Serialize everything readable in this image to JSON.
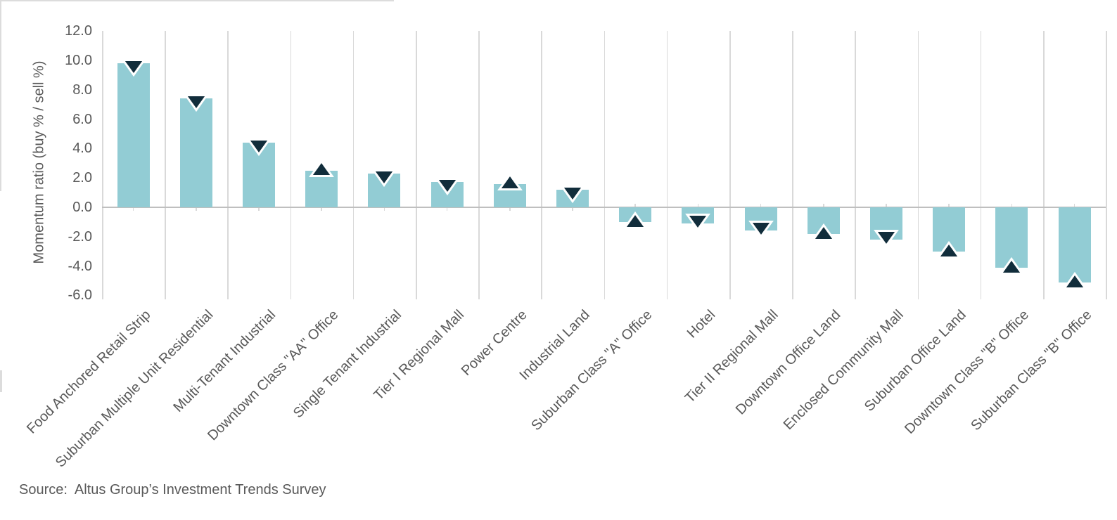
{
  "chart_data": {
    "type": "bar",
    "title": "",
    "xlabel": "",
    "ylabel": "Momentum ratio (buy % / sell %)",
    "ylim": [
      -6.0,
      12.0
    ],
    "ytick_interval": 2.0,
    "ytick_labels": [
      "12.0",
      "10.0",
      "8.0",
      "6.0",
      "4.0",
      "2.0",
      "0.0",
      "-2.0",
      "-4.0",
      "-6.0"
    ],
    "grid": "vertical category separators only",
    "legend": null,
    "categories": [
      "Food Anchored Retail Strip",
      "Suburban Multiple Unit Residential",
      "Multi-Tenant Industrial",
      "Downtown Class \"AA\" Office",
      "Single Tenant Industrial",
      "Tier I Regional Mall",
      "Power Centre",
      "Industrial Land",
      "Suburban Class \"A\" Office",
      "Hotel",
      "Tier II Regional Mall",
      "Downtown Office Land",
      "Enclosed Community Mall",
      "Suburban Office Land",
      "Downtown Class \"B\" Office",
      "Suburban Class \"B\" Office"
    ],
    "values": [
      9.8,
      7.4,
      4.4,
      2.5,
      2.3,
      1.7,
      1.6,
      1.2,
      -1.0,
      -1.1,
      -1.6,
      -1.8,
      -2.2,
      -3.0,
      -4.1,
      -5.1
    ],
    "marker_directions": [
      "down",
      "down",
      "down",
      "up",
      "down",
      "down",
      "up",
      "down",
      "up",
      "down",
      "down",
      "up",
      "down",
      "up",
      "up",
      "up"
    ]
  },
  "colors": {
    "bar_fill": "#92ccd4",
    "marker_fill": "#112d3b",
    "marker_outline": "#ffffff",
    "gridline": "#d9d9d9",
    "zero_line": "#bfbfbf",
    "axis_text": "#595959"
  },
  "footer": {
    "source_note": "Source:  Altus Group’s Investment Trends Survey"
  }
}
